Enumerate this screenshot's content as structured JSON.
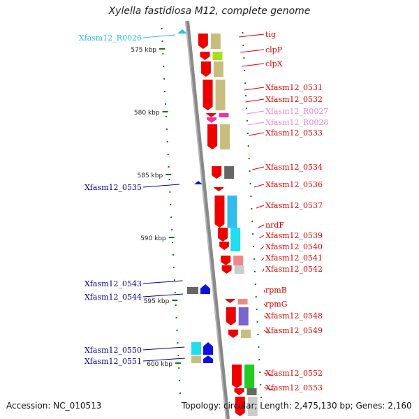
{
  "title": "Xylella fastidiosa M12, complete genome",
  "footer": {
    "accession": "Accession: NC_010513",
    "summary": "Topology: circular; Length: 2,475,130 bp; Genes: 2,160"
  },
  "colors": {
    "red": "#ee0000",
    "khaki": "#c8bd7e",
    "gray": "#666666",
    "cyan": "#22ddee",
    "magenta": "#ee33aa",
    "blue": "#1111dd",
    "green": "#22cc22",
    "purple": "#7766cc",
    "pink": "#ee8888",
    "lightgray": "#cccccc",
    "chartreuse": "#aadd22",
    "skyblue": "#33bbee",
    "label_red": "#dd0000",
    "label_blue": "#000099",
    "label_cyan": "#33bbdd",
    "label_pink": "#ee88cc",
    "tick_green": "#117711"
  },
  "kbp_ticks": [
    {
      "label": "575 kbp",
      "row": 70
    },
    {
      "label": "580 kbp",
      "row": 160
    },
    {
      "label": "585 kbp",
      "row": 250
    },
    {
      "label": "590 kbp",
      "row": 340
    },
    {
      "label": "595 kbp",
      "row": 430
    },
    {
      "label": "600 kbp",
      "row": 520
    }
  ],
  "features": [
    {
      "label": "tig",
      "color": "label_red",
      "side": "right",
      "row": 50
    },
    {
      "label": "clpP",
      "color": "label_red",
      "side": "right",
      "row": 72
    },
    {
      "label": "clpX",
      "color": "label_red",
      "side": "right",
      "row": 92
    },
    {
      "label": "Xfasm12_0531",
      "color": "label_red",
      "side": "right",
      "row": 126
    },
    {
      "label": "Xfasm12_0532",
      "color": "label_red",
      "side": "right",
      "row": 143
    },
    {
      "label": "Xfasm12_R0027",
      "color": "label_pink",
      "side": "right",
      "row": 160
    },
    {
      "label": "Xfasm12_R0028",
      "color": "label_pink",
      "side": "right",
      "row": 176
    },
    {
      "label": "Xfasm12_0533",
      "color": "label_red",
      "side": "right",
      "row": 191
    },
    {
      "label": "Xfasm12_0534",
      "color": "label_red",
      "side": "right",
      "row": 240
    },
    {
      "label": "Xfasm12_0536",
      "color": "label_red",
      "side": "right",
      "row": 265
    },
    {
      "label": "Xfasm12_0537",
      "color": "label_red",
      "side": "right",
      "row": 295
    },
    {
      "label": "nrdF",
      "color": "label_red",
      "side": "right",
      "row": 323
    },
    {
      "label": "Xfasm12_0539",
      "color": "label_red",
      "side": "right",
      "row": 338
    },
    {
      "label": "Xfasm12_0540",
      "color": "label_red",
      "side": "right",
      "row": 354
    },
    {
      "label": "Xfasm12_0541",
      "color": "label_red",
      "side": "right",
      "row": 370
    },
    {
      "label": "Xfasm12_0542",
      "color": "label_red",
      "side": "right",
      "row": 386
    },
    {
      "label": "rpmB",
      "color": "label_red",
      "side": "right",
      "row": 416
    },
    {
      "label": "rpmG",
      "color": "label_red",
      "side": "right",
      "row": 436
    },
    {
      "label": "Xfasm12_0548",
      "color": "label_red",
      "side": "right",
      "row": 453
    },
    {
      "label": "Xfasm12_0549",
      "color": "label_red",
      "side": "right",
      "row": 474
    },
    {
      "label": "Xfasm12_0552",
      "color": "label_red",
      "side": "right",
      "row": 535
    },
    {
      "label": "Xfasm12_0553",
      "color": "label_red",
      "side": "right",
      "row": 556
    },
    {
      "label": "Xfasm12_R0026",
      "color": "label_cyan",
      "side": "left",
      "row": 54
    },
    {
      "label": "Xfasm12_0535",
      "color": "label_blue",
      "side": "left",
      "row": 268
    },
    {
      "label": "Xfasm12_0543",
      "color": "label_blue",
      "side": "left",
      "row": 406
    },
    {
      "label": "Xfasm12_0544",
      "color": "label_blue",
      "side": "left",
      "row": 425
    },
    {
      "label": "Xfasm12_0550",
      "color": "label_blue",
      "side": "left",
      "row": 501
    },
    {
      "label": "Xfasm12_0551",
      "color": "label_blue",
      "side": "left",
      "row": 517
    }
  ]
}
